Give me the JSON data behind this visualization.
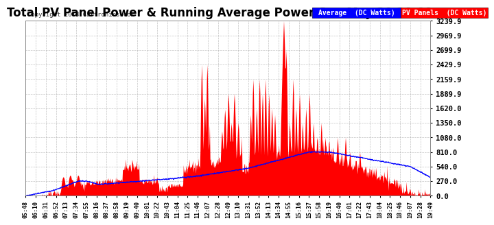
{
  "title": "Total PV Panel Power & Running Average Power Sun May 20 20:09",
  "copyright": "Copyright 2018 Cartronics.com",
  "legend_avg": "Average  (DC Watts)",
  "legend_pv": "PV Panels  (DC Watts)",
  "yticks": [
    0.0,
    270.0,
    540.0,
    810.0,
    1080.0,
    1350.0,
    1620.0,
    1889.9,
    2159.9,
    2429.9,
    2699.9,
    2969.9,
    3239.9
  ],
  "xtick_labels": [
    "05:48",
    "06:10",
    "06:31",
    "06:52",
    "07:13",
    "07:34",
    "07:55",
    "08:16",
    "08:37",
    "08:58",
    "09:19",
    "09:40",
    "10:01",
    "10:22",
    "10:43",
    "11:04",
    "11:25",
    "11:46",
    "12:07",
    "12:28",
    "12:49",
    "13:10",
    "13:31",
    "13:52",
    "14:13",
    "14:34",
    "14:55",
    "15:16",
    "15:37",
    "15:58",
    "16:19",
    "16:40",
    "17:01",
    "17:22",
    "17:43",
    "18:04",
    "18:25",
    "18:46",
    "19:07",
    "19:28",
    "19:49"
  ],
  "bg_color": "#ffffff",
  "plot_bg": "#ffffff",
  "grid_color": "#aaaaaa",
  "pv_color": "#ff0000",
  "avg_color": "#0000ff",
  "title_fontsize": 12,
  "ymax": 3239.9,
  "ymin": 0.0,
  "avg_box_color": "#0000cc",
  "pv_box_color": "#cc0000"
}
